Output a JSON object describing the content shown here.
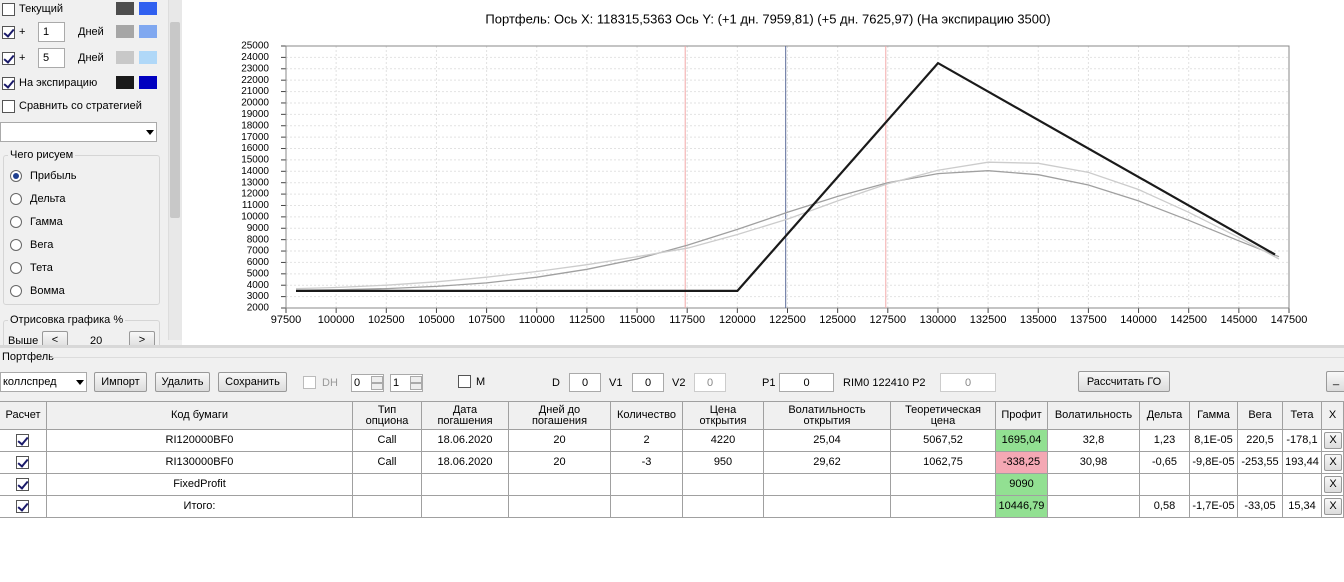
{
  "left_panel": {
    "lines": [
      {
        "label": "Текущий",
        "checked": false,
        "colors": [
          "#4d4d4d",
          "#3060f0"
        ]
      },
      {
        "prefix": "+",
        "days": "1",
        "unit": "Дней",
        "checked": true,
        "colors": [
          "#a6a6a6",
          "#80a8f0"
        ]
      },
      {
        "prefix": "+",
        "days": "5",
        "unit": "Дней",
        "checked": true,
        "colors": [
          "#c8c8c8",
          "#b0d8f8"
        ]
      },
      {
        "label": "На экспирацию",
        "checked": true,
        "colors": [
          "#1a1a1a",
          "#0000c0"
        ]
      }
    ],
    "compare": {
      "label": "Сравнить со стратегией",
      "checked": false
    },
    "draw_group": {
      "title": "Чего рисуем",
      "options": [
        "Прибыль",
        "Дельта",
        "Гамма",
        "Вега",
        "Тета",
        "Вомма"
      ],
      "selected": 0
    },
    "render_group": {
      "title": "Отрисовка графика %",
      "label": "Выше",
      "prev": "<",
      "value": "20",
      "next": ">"
    }
  },
  "chart_data": {
    "type": "line",
    "title": "Портфель: Ось X: 118315,5363 Ось Y:  (+1 дн. 7959,81)  (+5 дн. 7625,97)  (На экспирацию 3500)",
    "xlim": [
      97500,
      147500
    ],
    "xticks": [
      97500,
      100000,
      102500,
      105000,
      107500,
      110000,
      112500,
      115000,
      117500,
      120000,
      122500,
      125000,
      127500,
      130000,
      132500,
      135000,
      137500,
      140000,
      142500,
      145000,
      147500
    ],
    "ylim": [
      2000,
      25000
    ],
    "yticks": [
      2000,
      3000,
      4000,
      5000,
      6000,
      7000,
      8000,
      9000,
      10000,
      11000,
      12000,
      13000,
      14000,
      15000,
      16000,
      17000,
      18000,
      19000,
      20000,
      21000,
      22000,
      23000,
      24000,
      25000
    ],
    "grid": true,
    "series": [
      {
        "color": "#a0a0a0",
        "x": [
          98000,
          100000,
          102500,
          105000,
          107500,
          110000,
          112500,
          115000,
          117500,
          120000,
          122500,
          125000,
          127500,
          130000,
          132500,
          135000,
          137500,
          140000,
          142500,
          145000,
          147000
        ],
        "values": [
          3550,
          3600,
          3700,
          3900,
          4200,
          4700,
          5400,
          6300,
          7500,
          8900,
          10400,
          11800,
          13000,
          13800,
          14050,
          13700,
          12800,
          11400,
          9700,
          7900,
          6500
        ]
      },
      {
        "color": "#cccccc",
        "x": [
          98000,
          100000,
          102500,
          105000,
          107500,
          110000,
          112500,
          115000,
          117500,
          120000,
          122500,
          125000,
          127500,
          130000,
          132500,
          135000,
          137500,
          140000,
          142500,
          145000,
          147000
        ],
        "values": [
          3700,
          3800,
          4000,
          4300,
          4700,
          5200,
          5800,
          6500,
          7250,
          8450,
          9800,
          11400,
          12900,
          14100,
          14800,
          14700,
          13900,
          12400,
          10400,
          8200,
          6300
        ]
      },
      {
        "color": "#1a1a1a",
        "x": [
          98000,
          120000,
          130000,
          146800
        ],
        "values": [
          3500,
          3500,
          23500,
          6700
        ]
      }
    ],
    "vlines": [
      {
        "x": 117400,
        "color": "#f2a8a8"
      },
      {
        "x": 122410,
        "color": "#5a6a98"
      },
      {
        "x": 127400,
        "color": "#f2a8a8"
      }
    ]
  },
  "portfolio": {
    "title": "Портфель",
    "toolbar": {
      "strategy": "коллспред",
      "buttons": [
        "Импорт",
        "Удалить",
        "Сохранить"
      ],
      "dh": {
        "label": "DH",
        "checked": false
      },
      "spin1": "0",
      "spin2": "1",
      "m": {
        "label": "M",
        "checked": false
      },
      "fields": [
        {
          "label": "D",
          "value": "0",
          "disabled": false
        },
        {
          "label": "V1",
          "value": "0",
          "disabled": false
        },
        {
          "label": "V2",
          "value": "0",
          "disabled": true
        },
        {
          "label": "P1",
          "value": "0",
          "disabled": false
        },
        {
          "label": "RIM0 122410  P2",
          "value": "0",
          "disabled": true
        }
      ],
      "calc": "Рассчитать ГО",
      "minimize": "_"
    },
    "table": {
      "headers": [
        "Расчет",
        "Код бумаги",
        "Тип\nопциона",
        "Дата\nпогашения",
        "Дней до\nпогашения",
        "Количество",
        "Цена\nоткрытия",
        "Волатильность\nоткрытия",
        "Теоретическая\nцена",
        "Профит",
        "Волатильность",
        "Дельта",
        "Гамма",
        "Вега",
        "Тета",
        "X"
      ],
      "rows": [
        {
          "checked": true,
          "cells": [
            "RI120000BF0",
            "Call",
            "18.06.2020",
            "20",
            "2",
            "4220",
            "25,04",
            "5067,52",
            "1695,04",
            "32,8",
            "1,23",
            "8,1E-05",
            "220,5",
            "-178,1"
          ],
          "profit_bg": "#92e092",
          "close": "X"
        },
        {
          "checked": true,
          "cells": [
            "RI130000BF0",
            "Call",
            "18.06.2020",
            "20",
            "-3",
            "950",
            "29,62",
            "1062,75",
            "-338,25",
            "30,98",
            "-0,65",
            "-9,8E-05",
            "-253,55",
            "193,44"
          ],
          "profit_bg": "#f4a8b4",
          "close": "X"
        },
        {
          "checked": true,
          "cells": [
            "FixedProfit",
            null,
            null,
            null,
            null,
            null,
            null,
            null,
            "9090",
            null,
            null,
            null,
            null,
            null
          ],
          "profit_bg": "#92e092",
          "close": "X"
        },
        {
          "checked": true,
          "cells": [
            "Итого:",
            null,
            null,
            null,
            null,
            null,
            null,
            null,
            "10446,79",
            null,
            "0,58",
            "-1,7E-05",
            "-33,05",
            "15,34"
          ],
          "profit_bg": "#92e092",
          "close": "X"
        }
      ]
    }
  }
}
